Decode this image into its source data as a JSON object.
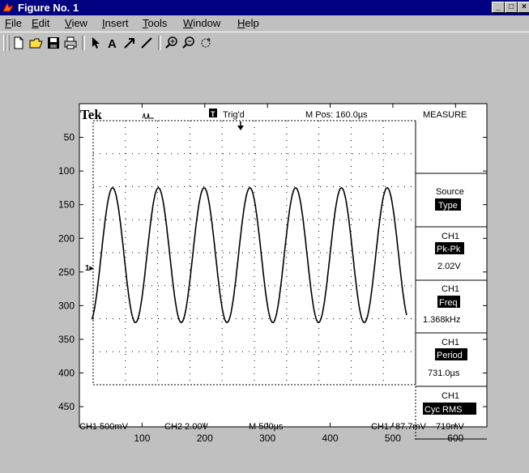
{
  "window": {
    "title": "Figure No. 1"
  },
  "title_buttons": [
    "_",
    "□",
    "×"
  ],
  "menu": [
    "File",
    "Edit",
    "View",
    "Insert",
    "Tools",
    "Window",
    "Help"
  ],
  "menu_mnemonics": [
    "F",
    "E",
    "V",
    "I",
    "T",
    "W",
    "H"
  ],
  "toolbar": [
    "new-file-icon",
    "open-folder-icon",
    "save-icon",
    "print-icon",
    "select-arrow-icon",
    "text-tool-icon",
    "arrow-tool-icon",
    "line-tool-icon",
    "zoom-in-icon",
    "zoom-out-icon",
    "rotate-icon"
  ],
  "scope": {
    "brand": "Tek",
    "trig_badge": "T",
    "trig_status": "Trig'd",
    "position": "M Pos: 160.0µs",
    "measure_title": "MEASURE",
    "source": "Source",
    "type": "Type",
    "measurements": [
      {
        "channel": "CH1",
        "name": "Pk-Pk",
        "value": "2.02V"
      },
      {
        "channel": "CH1",
        "name": "Freq",
        "value": "1.368kHz"
      },
      {
        "channel": "CH1",
        "name": "Period",
        "value": "731.0µs"
      },
      {
        "channel": "CH1",
        "name": "Cyc RMS",
        "value": "719mV"
      }
    ],
    "bottom_left": "CH1 500mV",
    "bottom_ch2": "CH2 2.00V",
    "bottom_time": "M 500µs",
    "bottom_trig": "CH1 ∕ 87.7mV"
  },
  "chart_data": {
    "type": "line",
    "x_ticks": [
      100,
      200,
      300,
      400,
      500,
      600
    ],
    "y_ticks": [
      50,
      100,
      150,
      200,
      250,
      300,
      350,
      400,
      450
    ],
    "xlim": [
      0,
      650
    ],
    "ylim": [
      0,
      480
    ],
    "y_reversed": true,
    "series": [
      {
        "kind": "sine",
        "x_start": 20,
        "x_end": 522,
        "y_min": 125,
        "y_max": 325,
        "period": 73,
        "peak_x": 53
      }
    ]
  }
}
